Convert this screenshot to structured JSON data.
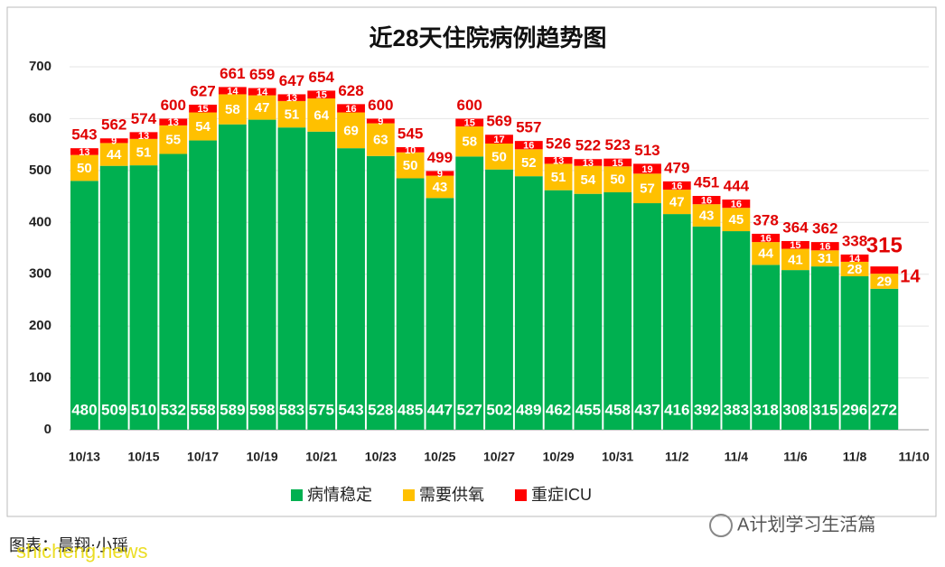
{
  "chart_data": {
    "type": "stacked_bar",
    "title": "近28天住院病例趋势图",
    "categories": [
      "10/13",
      null,
      "10/15",
      null,
      "10/17",
      null,
      "10/19",
      null,
      "10/21",
      null,
      "10/23",
      null,
      "10/25",
      null,
      "10/27",
      null,
      "10/29",
      null,
      "10/31",
      null,
      "11/2",
      null,
      "11/4",
      null,
      "11/6",
      null,
      "11/8",
      null,
      "11/10"
    ],
    "series": [
      {
        "name": "病情稳定",
        "color": "#00b050",
        "values": [
          480,
          509,
          510,
          532,
          558,
          589,
          598,
          583,
          575,
          543,
          528,
          485,
          447,
          527,
          502,
          489,
          462,
          455,
          458,
          437,
          416,
          392,
          383,
          318,
          308,
          315,
          296,
          272,
          null
        ]
      },
      {
        "name": "需要供氧",
        "color": "#ffc000",
        "values": [
          50,
          44,
          51,
          55,
          54,
          58,
          47,
          51,
          64,
          69,
          63,
          50,
          43,
          58,
          50,
          52,
          51,
          54,
          50,
          57,
          47,
          43,
          45,
          44,
          41,
          31,
          28,
          29,
          null
        ]
      },
      {
        "name": "重症ICU",
        "color": "#ff0000",
        "values": [
          13,
          9,
          13,
          13,
          15,
          14,
          14,
          13,
          15,
          16,
          9,
          10,
          9,
          15,
          17,
          16,
          13,
          13,
          15,
          19,
          16,
          16,
          16,
          16,
          15,
          16,
          14,
          14,
          null
        ]
      }
    ],
    "totals": [
      543,
      562,
      574,
      600,
      627,
      661,
      659,
      647,
      654,
      628,
      600,
      545,
      499,
      600,
      569,
      557,
      526,
      522,
      523,
      513,
      479,
      451,
      444,
      378,
      364,
      362,
      338,
      315,
      null
    ],
    "ylim": [
      0,
      700
    ],
    "yticks": [
      0,
      100,
      200,
      300,
      400,
      500,
      600,
      700
    ],
    "grid": true,
    "credit": "图表：晨翔·小瑶",
    "watermark": "shicheng.news",
    "account": "A计划学习生活篇"
  }
}
